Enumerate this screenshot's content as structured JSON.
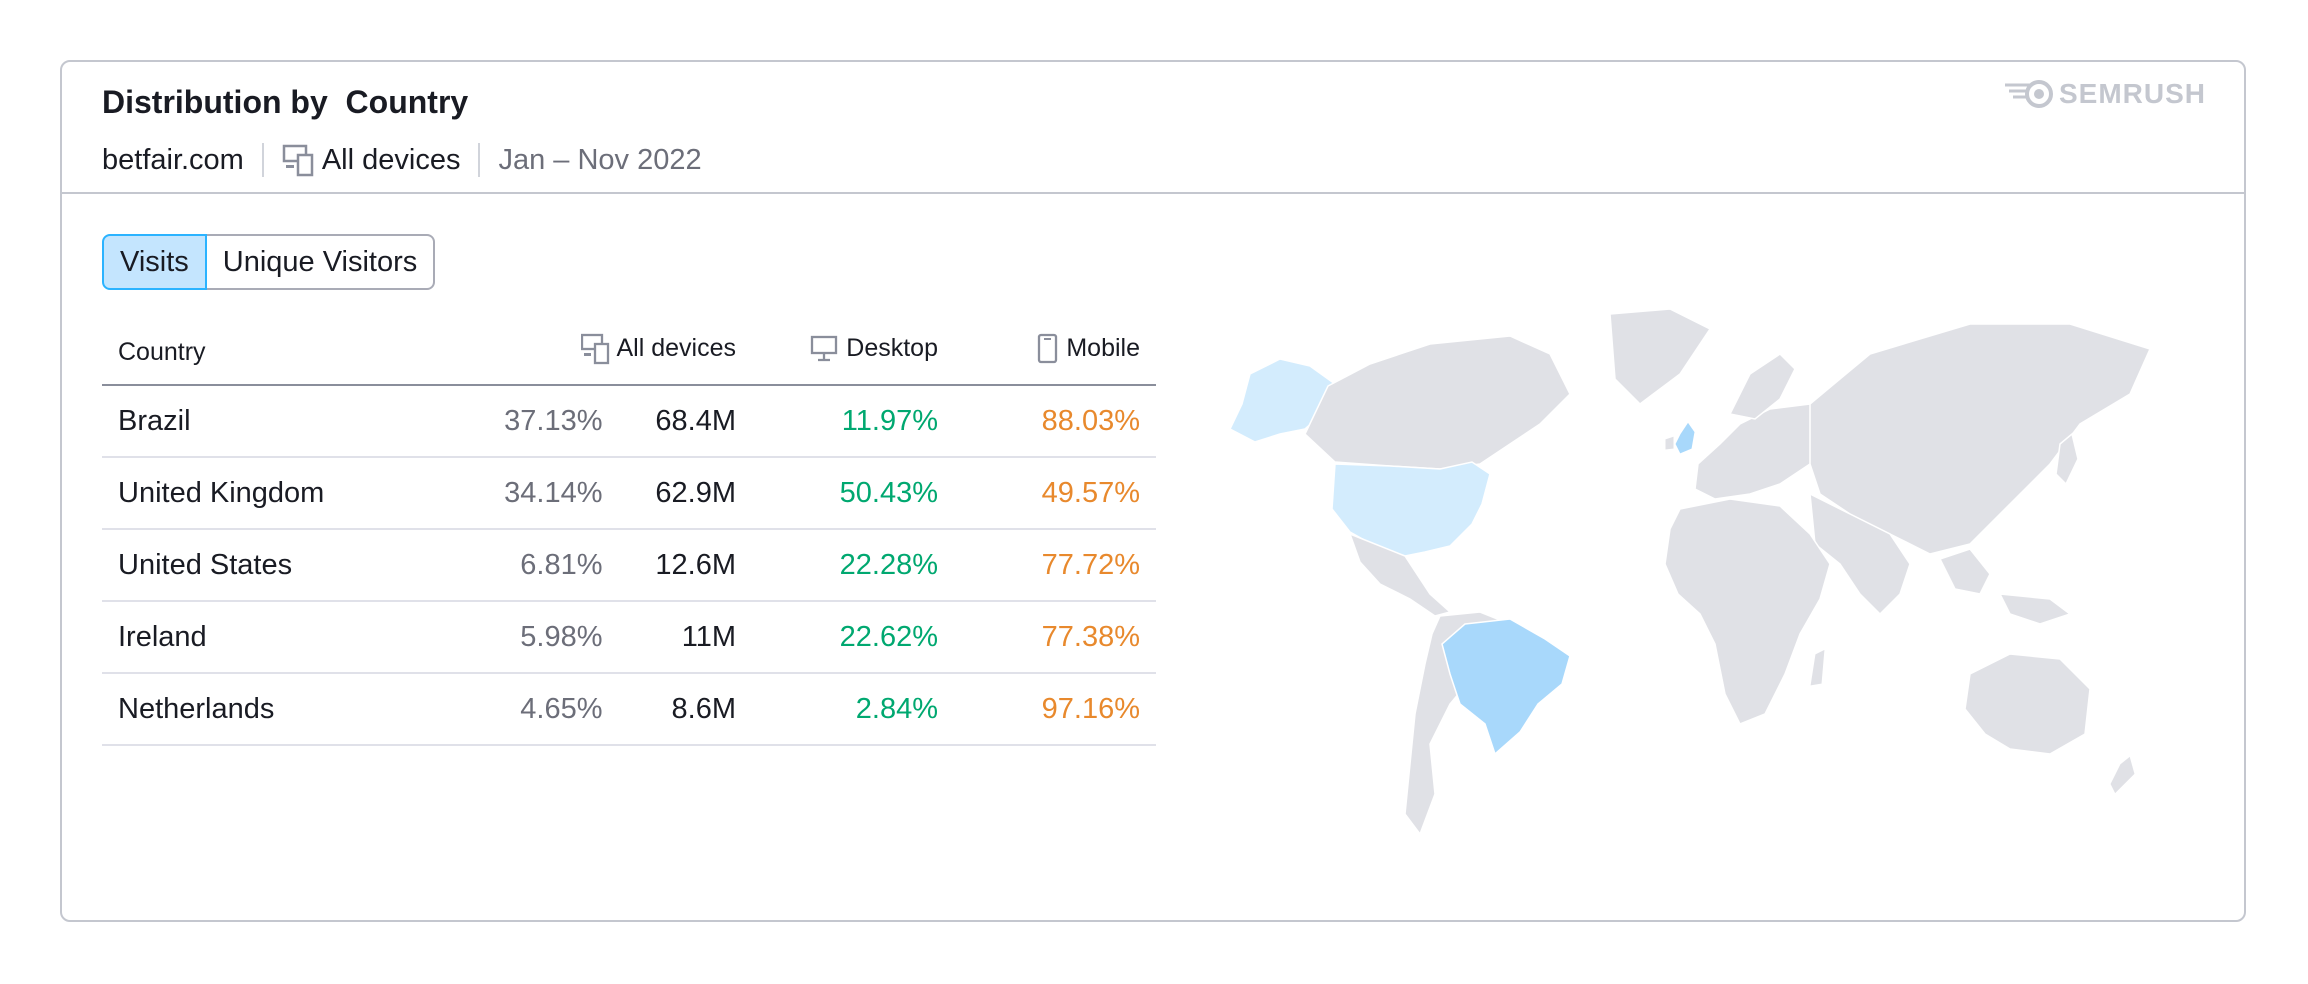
{
  "header": {
    "title": "Distribution by  Country",
    "domain": "betfair.com",
    "devices": "All devices",
    "device_icon": "devices-icon",
    "date_range": "Jan – Nov 2022",
    "logo_text": "SEMRUSH"
  },
  "tabs": [
    {
      "label": "Visits",
      "active": true
    },
    {
      "label": "Unique Visitors",
      "active": false
    }
  ],
  "table": {
    "columns": [
      "Country",
      "All devices",
      "Desktop",
      "Mobile"
    ],
    "column_icons": [
      "",
      "devices-icon",
      "desktop-icon",
      "mobile-icon"
    ],
    "rows": [
      {
        "country": "Brazil",
        "share": "37.13%",
        "visits": "68.4M",
        "desktop": "11.97%",
        "mobile": "88.03%"
      },
      {
        "country": "United Kingdom",
        "share": "34.14%",
        "visits": "62.9M",
        "desktop": "50.43%",
        "mobile": "49.57%"
      },
      {
        "country": "United States",
        "share": "6.81%",
        "visits": "12.6M",
        "desktop": "22.28%",
        "mobile": "77.72%"
      },
      {
        "country": "Ireland",
        "share": "5.98%",
        "visits": "11M",
        "desktop": "22.62%",
        "mobile": "77.38%"
      },
      {
        "country": "Netherlands",
        "share": "4.65%",
        "visits": "8.6M",
        "desktop": "2.84%",
        "mobile": "97.16%"
      }
    ]
  },
  "map": {
    "base_color": "#e0e1e6",
    "highlight_strong": "#a8d8fb",
    "highlight_light": "#d3ecfd",
    "highlighted": [
      "Brazil",
      "United Kingdom",
      "United States"
    ]
  },
  "colors": {
    "desktop": "#00a870",
    "mobile": "#e8892d",
    "active_tab_bg": "#c4e5fe",
    "active_tab_border": "#2bb3ff"
  }
}
